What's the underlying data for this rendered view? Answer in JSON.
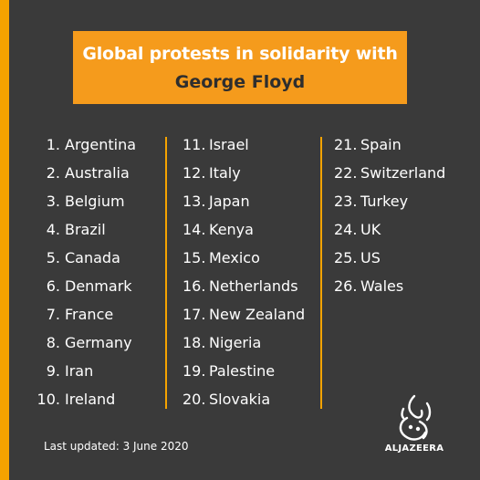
{
  "title": {
    "line1": "Global protests in solidarity with",
    "line2": "George Floyd"
  },
  "columns": [
    [
      {
        "num": "1.",
        "name": "Argentina"
      },
      {
        "num": "2.",
        "name": "Australia"
      },
      {
        "num": "3.",
        "name": "Belgium"
      },
      {
        "num": "4.",
        "name": "Brazil"
      },
      {
        "num": "5.",
        "name": "Canada"
      },
      {
        "num": "6.",
        "name": "Denmark"
      },
      {
        "num": "7.",
        "name": "France"
      },
      {
        "num": "8.",
        "name": "Germany"
      },
      {
        "num": "9.",
        "name": "Iran"
      },
      {
        "num": "10.",
        "name": "Ireland"
      }
    ],
    [
      {
        "num": "11.",
        "name": "Israel"
      },
      {
        "num": "12.",
        "name": "Italy"
      },
      {
        "num": "13.",
        "name": "Japan"
      },
      {
        "num": "14.",
        "name": "Kenya"
      },
      {
        "num": "15.",
        "name": "Mexico"
      },
      {
        "num": "16.",
        "name": "Netherlands"
      },
      {
        "num": "17.",
        "name": "New Zealand"
      },
      {
        "num": "18.",
        "name": "Nigeria"
      },
      {
        "num": "19.",
        "name": "Palestine"
      },
      {
        "num": "20.",
        "name": "Slovakia"
      }
    ],
    [
      {
        "num": "21.",
        "name": "Spain"
      },
      {
        "num": "22.",
        "name": "Switzerland"
      },
      {
        "num": "23.",
        "name": "Turkey"
      },
      {
        "num": "24.",
        "name": "UK"
      },
      {
        "num": "25.",
        "name": "US"
      },
      {
        "num": "26.",
        "name": "Wales"
      }
    ]
  ],
  "footer": {
    "updated": "Last updated: 3 June 2020"
  },
  "logo": {
    "icon": "al-jazeera-logo-icon",
    "text": "ALJAZEERA"
  },
  "colors": {
    "background": "#3a3a3a",
    "accent": "#f5a300",
    "title_box": "#f59b1c",
    "text": "#ffffff"
  }
}
